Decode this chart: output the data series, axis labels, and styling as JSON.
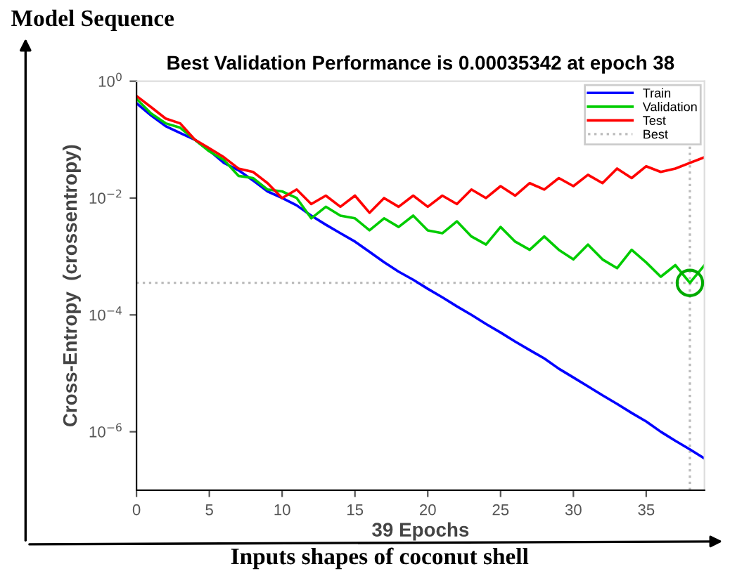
{
  "chart_data": {
    "type": "line",
    "title": "Best Validation Performance is 0.00035342 at epoch 38",
    "xlabel": "39 Epochs",
    "ylabel": "Cross-Entropy  (crossentropy)",
    "annotations": [
      "Model Sequence",
      "Inputs shapes of coconut shell"
    ],
    "x": [
      0,
      1,
      2,
      3,
      4,
      5,
      6,
      7,
      8,
      9,
      10,
      11,
      12,
      13,
      14,
      15,
      16,
      17,
      18,
      19,
      20,
      21,
      22,
      23,
      24,
      25,
      26,
      27,
      28,
      29,
      30,
      31,
      32,
      33,
      34,
      35,
      36,
      37,
      38,
      39
    ],
    "series": [
      {
        "name": "Train",
        "color": "#0000ff",
        "values": [
          0.42,
          0.26,
          0.17,
          0.13,
          0.1,
          0.065,
          0.04,
          0.03,
          0.02,
          0.013,
          0.01,
          0.0075,
          0.005,
          0.0035,
          0.0025,
          0.0018,
          0.0012,
          0.0008,
          0.00055,
          0.0004,
          0.00028,
          0.0002,
          0.00014,
          0.0001,
          7e-05,
          5e-05,
          3.5e-05,
          2.5e-05,
          1.8e-05,
          1.2e-05,
          8.5e-06,
          6e-06,
          4.2e-06,
          3e-06,
          2.1e-06,
          1.5e-06,
          1e-06,
          7e-07,
          5e-07,
          3.5e-07
        ]
      },
      {
        "name": "Validation",
        "color": "#00cc00",
        "values": [
          0.5,
          0.28,
          0.19,
          0.16,
          0.1,
          0.063,
          0.045,
          0.024,
          0.022,
          0.014,
          0.013,
          0.01,
          0.0045,
          0.0071,
          0.005,
          0.0045,
          0.0028,
          0.0045,
          0.0032,
          0.005,
          0.0028,
          0.0025,
          0.004,
          0.0022,
          0.0016,
          0.0032,
          0.0018,
          0.0013,
          0.0022,
          0.0013,
          0.00089,
          0.0016,
          0.00089,
          0.00063,
          0.0013,
          0.00079,
          0.00045,
          0.00071,
          0.00035342,
          0.00071
        ]
      },
      {
        "name": "Test",
        "color": "#ff0000",
        "values": [
          0.56,
          0.36,
          0.23,
          0.19,
          0.1,
          0.071,
          0.05,
          0.032,
          0.028,
          0.018,
          0.01,
          0.014,
          0.0079,
          0.011,
          0.0071,
          0.011,
          0.0056,
          0.01,
          0.0071,
          0.011,
          0.0071,
          0.011,
          0.0079,
          0.014,
          0.01,
          0.016,
          0.011,
          0.018,
          0.014,
          0.022,
          0.016,
          0.025,
          0.018,
          0.032,
          0.022,
          0.035,
          0.028,
          0.032,
          0.04,
          0.05
        ]
      },
      {
        "type": "scatter",
        "color": "#00aa00",
        "marker": "circle",
        "x": [
          38
        ],
        "values": [
          0.00035342
        ]
      }
    ],
    "ref_lines": [
      {
        "axis": "x",
        "value": 38,
        "label": "Best",
        "color": "#bbbbbb",
        "line_style": "dotted"
      },
      {
        "axis": "y",
        "value": 0.00035342,
        "color": "#bbbbbb",
        "line_style": "dotted"
      }
    ],
    "log": true,
    "xlim": [
      0,
      39
    ],
    "ylim": [
      1e-07,
      1
    ],
    "xticks": [
      0,
      5,
      10,
      15,
      20,
      25,
      30,
      35
    ],
    "yticks": [
      {
        "value": 1,
        "label": "10$^{0}$"
      },
      {
        "value": 0.01,
        "label": "10$^{−2}$"
      },
      {
        "value": 0.0001,
        "label": "10$^{−4}$"
      },
      {
        "value": 1e-06,
        "label": "10$^{−6}$"
      }
    ],
    "legend": "top right",
    "grid": false,
    "line_style": "solid"
  }
}
